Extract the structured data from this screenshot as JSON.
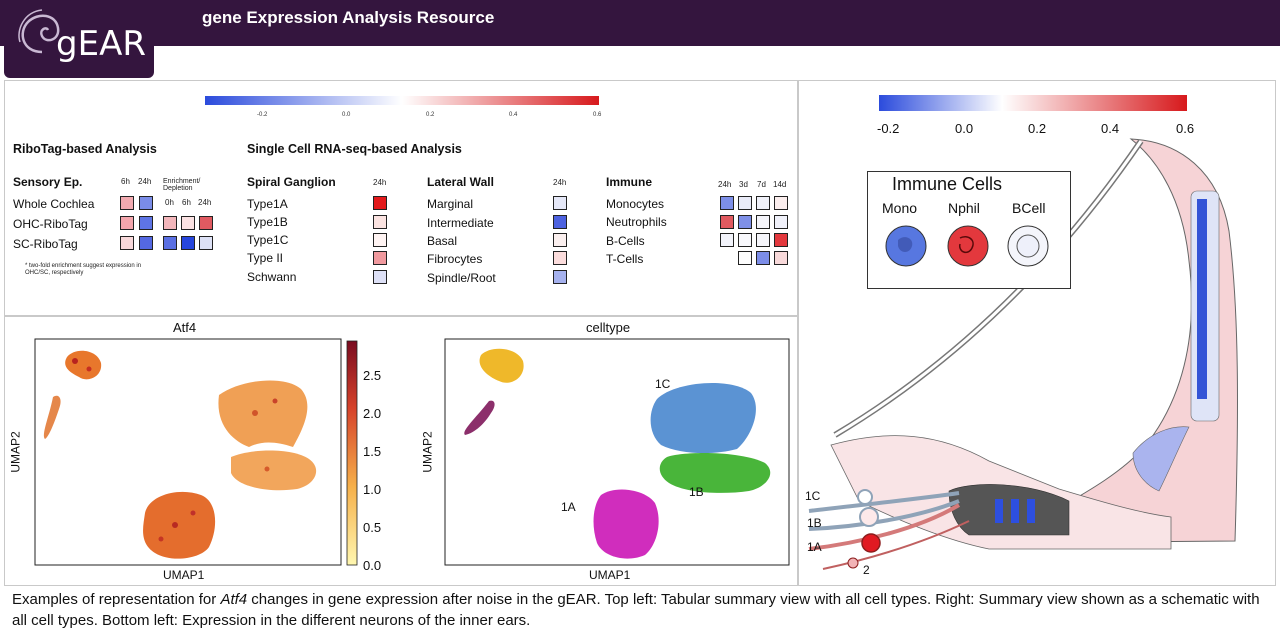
{
  "header": {
    "logo": "gEAR",
    "title": "gene Expression Analysis Resource"
  },
  "colors": {
    "header_bg": "#34153e",
    "neg": "#2b4bdc",
    "pos": "#d7191c"
  },
  "table": {
    "scale_ticks": [
      "-0.2",
      "0.0",
      "0.2",
      "0.4",
      "0.6"
    ],
    "ribotag_title": "RiboTag-based Analysis",
    "scrna_title": "Single Cell RNA-seq-based Analysis",
    "sensory": {
      "title": "Sensory Ep.",
      "cols": [
        "6h",
        "24h"
      ],
      "enrich_label": "Enrichment/ Depletion",
      "enrich_cols": [
        "0h",
        "6h",
        "24h"
      ],
      "rows": [
        "Whole Cochlea",
        "OHC-RiboTag",
        "SC-RiboTag"
      ],
      "note": "* two-fold enrichment suggest expression in OHC/SC, respectively"
    },
    "spiral": {
      "title": "Spiral Ganglion",
      "col": "24h",
      "rows": [
        "Type1A",
        "Type1B",
        "Type1C",
        "Type II",
        "Schwann"
      ]
    },
    "lateral": {
      "title": "Lateral Wall",
      "col": "24h",
      "rows": [
        "Marginal",
        "Intermediate",
        "Basal",
        "Fibrocytes",
        "Spindle/Root"
      ]
    },
    "immune": {
      "title": "Immune",
      "cols": [
        "24h",
        "3d",
        "7d",
        "14d"
      ],
      "rows": [
        "Monocytes",
        "Neutrophils",
        "B-Cells",
        "T-Cells"
      ]
    }
  },
  "umap": {
    "left_title": "Atf4",
    "right_title": "celltype",
    "xlabel": "UMAP1",
    "ylabel": "UMAP2",
    "colorbar_ticks": [
      "0.0",
      "0.5",
      "1.0",
      "1.5",
      "2.0",
      "2.5"
    ],
    "cluster_labels": [
      "1C",
      "1B",
      "1A"
    ]
  },
  "schematic": {
    "scale_ticks": [
      "-0.2",
      "0.0",
      "0.2",
      "0.4",
      "0.6"
    ],
    "legend_title": "Immune Cells",
    "legend_items": [
      "Mono",
      "Nphil",
      "BCell"
    ],
    "neuron_labels": [
      "1C",
      "1B",
      "1A",
      "2"
    ]
  },
  "caption": {
    "part1": "Examples of representation for ",
    "gene": "Atf4",
    "part2": " changes in gene expression after noise in the gEAR. Top left: Tabular summary view with all cell types. Right: Summary view shown as a schematic with all cell types. Bottom left: Expression in the different neurons of the inner ears."
  }
}
